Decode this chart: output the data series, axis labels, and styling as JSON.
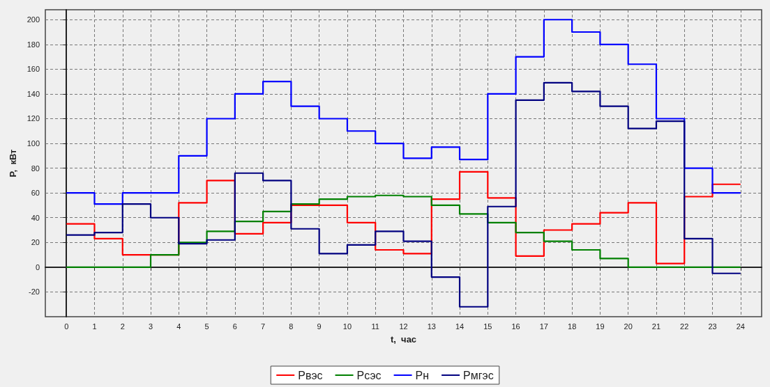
{
  "chart_data": {
    "type": "step",
    "xlabel": "t,  час",
    "ylabel": "P,  кВт",
    "x": [
      0,
      1,
      2,
      3,
      4,
      5,
      6,
      7,
      8,
      9,
      10,
      11,
      12,
      13,
      14,
      15,
      16,
      17,
      18,
      19,
      20,
      21,
      22,
      23,
      24
    ],
    "xlim": [
      -0.75,
      24.75
    ],
    "xticks": [
      0,
      1,
      2,
      3,
      4,
      5,
      6,
      7,
      8,
      9,
      10,
      11,
      12,
      13,
      14,
      15,
      16,
      17,
      18,
      19,
      20,
      21,
      22,
      23,
      24
    ],
    "ylim": [
      -40,
      208
    ],
    "yticks": [
      -20,
      0,
      20,
      40,
      60,
      80,
      100,
      120,
      140,
      160,
      180,
      200
    ],
    "grid": true,
    "legend": "bottom",
    "marker": "none",
    "line_style": "solid",
    "series": [
      {
        "name": "Рвэс",
        "color": "#ff0000",
        "values": [
          35,
          23,
          10,
          10,
          52,
          70,
          27,
          36,
          50,
          50,
          36,
          14,
          11,
          55,
          77,
          56,
          9,
          30,
          35,
          44,
          52,
          3,
          57,
          67,
          67
        ]
      },
      {
        "name": "Рсэс",
        "color": "#008000",
        "values": [
          0,
          0,
          0,
          10,
          20,
          29,
          37,
          45,
          51,
          55,
          57,
          58,
          57,
          50,
          43,
          36,
          28,
          21,
          14,
          7,
          0,
          0,
          0,
          0,
          0
        ]
      },
      {
        "name": "Рн",
        "color": "#0000ff",
        "values": [
          60,
          51,
          60,
          60,
          90,
          120,
          140,
          150,
          130,
          120,
          110,
          100,
          88,
          97,
          87,
          140,
          170,
          200,
          190,
          180,
          164,
          120,
          80,
          60,
          60
        ]
      },
      {
        "name": "Рмгэс",
        "color": "#000080",
        "values": [
          26,
          28,
          51,
          40,
          19,
          22,
          76,
          70,
          31,
          11,
          18,
          29,
          21,
          -8,
          -32,
          49,
          135,
          149,
          142,
          130,
          112,
          118,
          23,
          -5,
          -5
        ]
      }
    ]
  }
}
